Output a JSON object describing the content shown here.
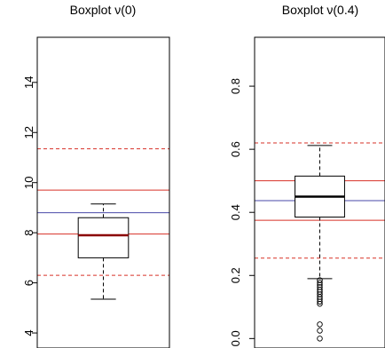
{
  "chart_data": [
    {
      "type": "boxplot",
      "title_prefix": "Boxplot ",
      "title_param": "ν(0)",
      "ylim": [
        3.4,
        15.8
      ],
      "yticks": [
        4,
        6,
        8,
        10,
        12,
        14
      ],
      "box": {
        "min": 5.35,
        "q1": 7.0,
        "median": 7.9,
        "q3": 8.6,
        "max": 9.15
      },
      "outliers": [],
      "reference_lines": [
        {
          "value": 11.35,
          "color": "#d73027",
          "style": "dashed"
        },
        {
          "value": 9.7,
          "color": "#d73027",
          "style": "solid"
        },
        {
          "value": 8.8,
          "color": "#4a4aa8",
          "style": "solid"
        },
        {
          "value": 7.95,
          "color": "#d73027",
          "style": "solid"
        },
        {
          "value": 6.3,
          "color": "#d73027",
          "style": "dashed"
        }
      ],
      "median_color": "#8b0000",
      "grid": false
    },
    {
      "type": "boxplot",
      "title_prefix": "Boxplot ",
      "title_param": "ν(0.4)",
      "ylim": [
        -0.03,
        0.955
      ],
      "yticks": [
        0.0,
        0.2,
        0.4,
        0.6,
        0.8
      ],
      "ytick_labels": [
        "0.0",
        "0.2",
        "0.4",
        "0.6",
        "0.8"
      ],
      "box": {
        "min": 0.19,
        "q1": 0.385,
        "median": 0.45,
        "q3": 0.515,
        "max": 0.612
      },
      "outliers": [
        0.185,
        0.177,
        0.17,
        0.163,
        0.155,
        0.148,
        0.14,
        0.132,
        0.125,
        0.117,
        0.11,
        0.045,
        0.025,
        0.0
      ],
      "reference_lines": [
        {
          "value": 0.62,
          "color": "#d73027",
          "style": "dashed"
        },
        {
          "value": 0.5,
          "color": "#d73027",
          "style": "solid"
        },
        {
          "value": 0.437,
          "color": "#4a4aa8",
          "style": "solid"
        },
        {
          "value": 0.375,
          "color": "#d73027",
          "style": "solid"
        },
        {
          "value": 0.255,
          "color": "#d73027",
          "style": "dashed"
        }
      ],
      "median_color": "#000000",
      "grid": false
    }
  ]
}
